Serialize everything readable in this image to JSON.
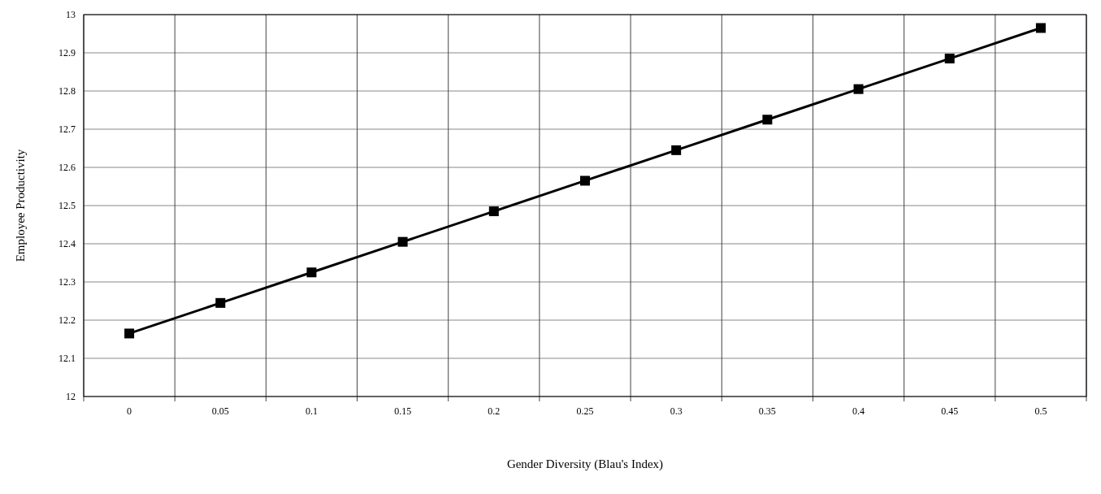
{
  "chart_data": {
    "type": "line",
    "xlabel": "Gender Diversity (Blau's Index)",
    "ylabel": "Employee Productivity",
    "categories": [
      "0",
      "0.05",
      "0.1",
      "0.15",
      "0.2",
      "0.25",
      "0.3",
      "0.35",
      "0.4",
      "0.45",
      "0.5"
    ],
    "series": [
      {
        "color": "#000000",
        "values": [
          12.165,
          12.245,
          12.325,
          12.405,
          12.485,
          12.565,
          12.645,
          12.725,
          12.805,
          12.885,
          12.965
        ]
      }
    ],
    "ylim": [
      12,
      13
    ],
    "yticks": [
      12,
      12.1,
      12.2,
      12.3,
      12.4,
      12.5,
      12.6,
      12.7,
      12.8,
      12.9,
      13
    ],
    "grid": true,
    "marker": "square",
    "line_style": "solid"
  }
}
